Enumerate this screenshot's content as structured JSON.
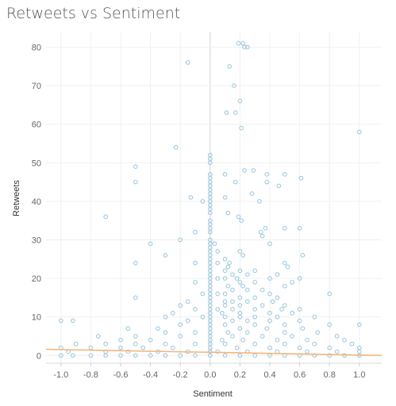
{
  "chart_data": {
    "type": "scatter",
    "title": "Retweets vs Sentiment",
    "xlabel": "Sentiment",
    "ylabel": "Retweets",
    "xlim": [
      -1.1,
      1.15
    ],
    "ylim": [
      -2,
      84
    ],
    "xticks": [
      "-1.0",
      "-0.8",
      "-0.6",
      "-0.4",
      "-0.2",
      "0.0",
      "0.2",
      "0.4",
      "0.6",
      "0.8",
      "1.0"
    ],
    "yticks": [
      "0",
      "10",
      "20",
      "30",
      "40",
      "50",
      "60",
      "70",
      "80"
    ],
    "grid": true,
    "point_color": "#9ecae1",
    "trend_color": "#f4b67a",
    "trend_line": [
      [
        -1.1,
        1.6
      ],
      [
        1.15,
        0.0
      ]
    ],
    "points": [
      [
        0.19,
        81
      ],
      [
        0.22,
        81
      ],
      [
        0.23,
        80
      ],
      [
        0.25,
        80
      ],
      [
        -0.15,
        76
      ],
      [
        0.13,
        75
      ],
      [
        0.16,
        70
      ],
      [
        0.2,
        66
      ],
      [
        0.17,
        63
      ],
      [
        0.11,
        63
      ],
      [
        0.21,
        59
      ],
      [
        1.0,
        58
      ],
      [
        -0.23,
        54
      ],
      [
        0.0,
        52
      ],
      [
        0.0,
        51
      ],
      [
        0.0,
        50
      ],
      [
        -0.5,
        49
      ],
      [
        0.29,
        48
      ],
      [
        0.23,
        48
      ],
      [
        0.0,
        47
      ],
      [
        0.1,
        47
      ],
      [
        0.38,
        47
      ],
      [
        0.5,
        47
      ],
      [
        0.0,
        46
      ],
      [
        0.61,
        46
      ],
      [
        -0.5,
        45
      ],
      [
        0.0,
        45
      ],
      [
        0.17,
        45
      ],
      [
        0.38,
        45
      ],
      [
        0.0,
        44
      ],
      [
        0.46,
        44
      ],
      [
        0.0,
        43
      ],
      [
        0.0,
        42
      ],
      [
        0.28,
        42
      ],
      [
        0.0,
        41
      ],
      [
        -0.13,
        41
      ],
      [
        0.1,
        41
      ],
      [
        -0.05,
        40
      ],
      [
        0.0,
        40
      ],
      [
        0.33,
        40
      ],
      [
        0.0,
        39
      ],
      [
        0.0,
        38
      ],
      [
        0.0,
        37
      ],
      [
        0.12,
        37
      ],
      [
        0.19,
        36
      ],
      [
        -0.7,
        36
      ],
      [
        0.0,
        35
      ],
      [
        0.21,
        35
      ],
      [
        0.0,
        34
      ],
      [
        0.0,
        33
      ],
      [
        0.37,
        33
      ],
      [
        0.6,
        33
      ],
      [
        0.5,
        33
      ],
      [
        -0.1,
        32
      ],
      [
        0.0,
        32
      ],
      [
        0.34,
        32
      ],
      [
        0.35,
        31
      ],
      [
        0.0,
        30
      ],
      [
        -0.2,
        30
      ],
      [
        0.0,
        29
      ],
      [
        0.03,
        29
      ],
      [
        -0.4,
        29
      ],
      [
        0.4,
        29
      ],
      [
        0.0,
        28
      ],
      [
        0.0,
        27
      ],
      [
        0.05,
        27
      ],
      [
        0.2,
        27
      ],
      [
        -0.3,
        26
      ],
      [
        0.0,
        26
      ],
      [
        0.22,
        26
      ],
      [
        0.62,
        26
      ],
      [
        0.0,
        25
      ],
      [
        0.1,
        25
      ],
      [
        -0.5,
        24
      ],
      [
        0.0,
        24
      ],
      [
        0.05,
        24
      ],
      [
        0.13,
        24
      ],
      [
        -0.1,
        24
      ],
      [
        0.5,
        24
      ],
      [
        0.0,
        23
      ],
      [
        0.12,
        23
      ],
      [
        0.52,
        23
      ],
      [
        0.0,
        22
      ],
      [
        0.1,
        22
      ],
      [
        0.2,
        22
      ],
      [
        0.3,
        22
      ],
      [
        0.0,
        21
      ],
      [
        0.15,
        21
      ],
      [
        0.45,
        21
      ],
      [
        0.25,
        21
      ],
      [
        0.0,
        20
      ],
      [
        0.05,
        20
      ],
      [
        0.1,
        20
      ],
      [
        0.18,
        20
      ],
      [
        0.4,
        20
      ],
      [
        0.6,
        20
      ],
      [
        -0.1,
        19
      ],
      [
        0.0,
        19
      ],
      [
        0.2,
        19
      ],
      [
        0.3,
        19
      ],
      [
        0.55,
        19
      ],
      [
        0.0,
        18
      ],
      [
        0.12,
        18
      ],
      [
        0.22,
        18
      ],
      [
        0.5,
        18
      ],
      [
        0.0,
        17
      ],
      [
        0.15,
        17
      ],
      [
        0.25,
        17
      ],
      [
        0.35,
        17
      ],
      [
        0.0,
        16
      ],
      [
        0.05,
        16
      ],
      [
        0.1,
        16
      ],
      [
        0.4,
        16
      ],
      [
        0.8,
        16
      ],
      [
        -0.05,
        16
      ],
      [
        0.0,
        15
      ],
      [
        -0.5,
        15
      ],
      [
        0.2,
        15
      ],
      [
        0.3,
        15
      ],
      [
        0.45,
        15
      ],
      [
        0.0,
        14
      ],
      [
        0.1,
        14
      ],
      [
        0.15,
        14
      ],
      [
        0.25,
        14
      ],
      [
        0.42,
        14
      ],
      [
        -0.15,
        14
      ],
      [
        0.0,
        13
      ],
      [
        -0.2,
        13
      ],
      [
        0.1,
        13
      ],
      [
        0.2,
        13
      ],
      [
        0.35,
        13
      ],
      [
        0.5,
        13
      ],
      [
        0.0,
        12
      ],
      [
        0.05,
        12
      ],
      [
        -0.1,
        12
      ],
      [
        0.15,
        12
      ],
      [
        0.3,
        12
      ],
      [
        0.48,
        12
      ],
      [
        0.6,
        12
      ],
      [
        0.0,
        11
      ],
      [
        0.08,
        11
      ],
      [
        0.2,
        11
      ],
      [
        -0.25,
        11
      ],
      [
        0.4,
        11
      ],
      [
        0.55,
        11
      ],
      [
        0.0,
        10
      ],
      [
        0.1,
        10
      ],
      [
        0.2,
        10
      ],
      [
        0.3,
        10
      ],
      [
        -0.3,
        10
      ],
      [
        0.45,
        10
      ],
      [
        0.7,
        10
      ],
      [
        -0.05,
        10
      ],
      [
        -1.0,
        9
      ],
      [
        -0.92,
        9
      ],
      [
        0.0,
        9
      ],
      [
        0.15,
        9
      ],
      [
        0.25,
        9
      ],
      [
        -0.15,
        9
      ],
      [
        0.4,
        9
      ],
      [
        0.6,
        9
      ],
      [
        1.0,
        8
      ],
      [
        0.0,
        8
      ],
      [
        0.1,
        8
      ],
      [
        -0.2,
        8
      ],
      [
        0.3,
        8
      ],
      [
        0.5,
        8
      ],
      [
        0.8,
        8
      ],
      [
        -0.55,
        7
      ],
      [
        -0.35,
        7
      ],
      [
        0.0,
        7
      ],
      [
        0.2,
        7
      ],
      [
        0.38,
        7
      ],
      [
        0.62,
        7
      ],
      [
        0.0,
        6
      ],
      [
        -0.1,
        6
      ],
      [
        0.12,
        6
      ],
      [
        -0.3,
        6
      ],
      [
        0.25,
        6
      ],
      [
        0.5,
        6
      ],
      [
        0.72,
        6
      ],
      [
        -0.75,
        5
      ],
      [
        -0.5,
        5
      ],
      [
        0.0,
        5
      ],
      [
        0.15,
        5
      ],
      [
        -0.2,
        5
      ],
      [
        0.35,
        5
      ],
      [
        0.55,
        5
      ],
      [
        0.85,
        5
      ],
      [
        0.0,
        4
      ],
      [
        0.08,
        4
      ],
      [
        -0.4,
        4
      ],
      [
        0.22,
        4
      ],
      [
        0.45,
        4
      ],
      [
        0.65,
        4
      ],
      [
        -0.6,
        4
      ],
      [
        0.9,
        4
      ],
      [
        -0.9,
        3
      ],
      [
        -0.7,
        3
      ],
      [
        -0.5,
        3
      ],
      [
        -0.3,
        3
      ],
      [
        -0.1,
        3
      ],
      [
        0.0,
        3
      ],
      [
        0.1,
        3
      ],
      [
        0.3,
        3
      ],
      [
        0.5,
        3
      ],
      [
        0.7,
        3
      ],
      [
        0.95,
        3
      ],
      [
        -1.0,
        2
      ],
      [
        -0.8,
        2
      ],
      [
        -0.6,
        2
      ],
      [
        -0.45,
        2
      ],
      [
        -0.25,
        2
      ],
      [
        0.0,
        2
      ],
      [
        0.18,
        2
      ],
      [
        0.4,
        2
      ],
      [
        0.6,
        2
      ],
      [
        0.8,
        2
      ],
      [
        1.0,
        2
      ],
      [
        -0.95,
        1
      ],
      [
        -0.7,
        1
      ],
      [
        -0.55,
        1
      ],
      [
        -0.35,
        1
      ],
      [
        -0.15,
        1
      ],
      [
        0.0,
        1
      ],
      [
        0.05,
        1
      ],
      [
        0.25,
        1
      ],
      [
        0.45,
        1
      ],
      [
        0.65,
        1
      ],
      [
        0.85,
        1
      ],
      [
        1.0,
        1
      ],
      [
        -1.0,
        0
      ],
      [
        -0.92,
        0
      ],
      [
        -0.8,
        0
      ],
      [
        -0.7,
        0
      ],
      [
        -0.6,
        0
      ],
      [
        -0.5,
        0
      ],
      [
        -0.4,
        0
      ],
      [
        -0.3,
        0
      ],
      [
        -0.2,
        0
      ],
      [
        -0.1,
        0
      ],
      [
        0.0,
        0
      ],
      [
        0.1,
        0
      ],
      [
        0.2,
        0
      ],
      [
        0.3,
        0
      ],
      [
        0.4,
        0
      ],
      [
        0.5,
        0
      ],
      [
        0.6,
        0
      ],
      [
        0.7,
        0
      ],
      [
        0.8,
        0
      ],
      [
        0.9,
        0
      ],
      [
        1.0,
        0
      ]
    ]
  }
}
